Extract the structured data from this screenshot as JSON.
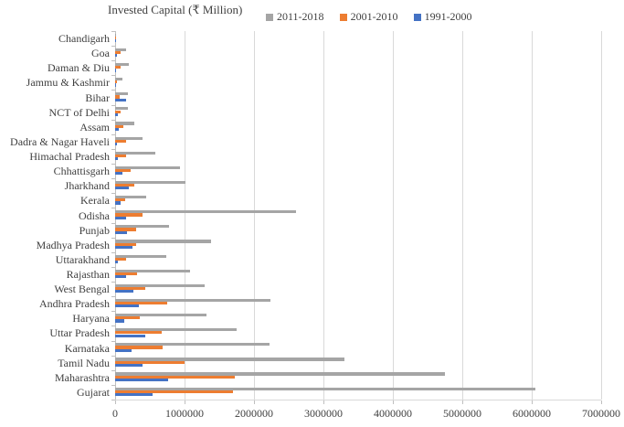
{
  "title": "Invested Capital (₹ Million)",
  "legend": [
    {
      "label": "2011-2018",
      "color": "#a5a5a5"
    },
    {
      "label": "2001-2010",
      "color": "#ed7d31"
    },
    {
      "label": "1991-2000",
      "color": "#4472c4"
    }
  ],
  "colors": {
    "series_2011_2018": "#a5a5a5",
    "series_2001_2010": "#ed7d31",
    "series_1991_2000": "#4472c4",
    "gridline": "#d9d9d9",
    "axis": "#bfbfbf",
    "text": "#3f3f3f",
    "background": "#ffffff"
  },
  "chart_data": {
    "type": "bar",
    "orientation": "horizontal",
    "title": "Invested Capital (₹ Million)",
    "xlabel": "",
    "ylabel": "",
    "xlim": [
      0,
      7000000
    ],
    "x_ticks": [
      0,
      1000000,
      2000000,
      3000000,
      4000000,
      5000000,
      6000000,
      7000000
    ],
    "x_tick_labels": [
      "0",
      "1000000",
      "2000000",
      "3000000",
      "4000000",
      "5000000",
      "6000000",
      "7000000"
    ],
    "grid": true,
    "legend_position": "top-right",
    "categories": [
      "Chandigarh",
      "Goa",
      "Daman & Diu",
      "Jammu & Kashmir",
      "Bihar",
      "NCT of Delhi",
      "Assam",
      "Dadra & Nagar Haveli",
      "Himachal Pradesh",
      "Chhattisgarh",
      "Jharkhand",
      "Kerala",
      "Odisha",
      "Punjab",
      "Madhya Pradesh",
      "Uttarakhand",
      "Rajasthan",
      "West Bengal",
      "Andhra Pradesh",
      "Haryana",
      "Uttar Pradesh",
      "Karnataka",
      "Tamil Nadu",
      "Maharashtra",
      "Gujarat"
    ],
    "series": [
      {
        "name": "2011-2018",
        "color": "#a5a5a5",
        "values": [
          15000,
          160000,
          200000,
          110000,
          190000,
          185000,
          280000,
          390000,
          580000,
          940000,
          1010000,
          450000,
          2600000,
          780000,
          1380000,
          740000,
          1080000,
          1290000,
          2240000,
          1320000,
          1750000,
          2220000,
          3300000,
          4750000,
          6050000
        ]
      },
      {
        "name": "2001-2010",
        "color": "#ed7d31",
        "values": [
          5000,
          75000,
          85000,
          20000,
          60000,
          75000,
          120000,
          160000,
          160000,
          230000,
          270000,
          150000,
          390000,
          300000,
          300000,
          160000,
          310000,
          440000,
          750000,
          360000,
          670000,
          690000,
          1000000,
          1720000,
          1700000
        ]
      },
      {
        "name": "1991-2000",
        "color": "#4472c4",
        "values": [
          2000,
          25000,
          10000,
          5000,
          155000,
          40000,
          50000,
          30000,
          35000,
          100000,
          200000,
          75000,
          160000,
          170000,
          250000,
          40000,
          160000,
          260000,
          340000,
          130000,
          440000,
          240000,
          400000,
          760000,
          545000
        ]
      }
    ]
  }
}
